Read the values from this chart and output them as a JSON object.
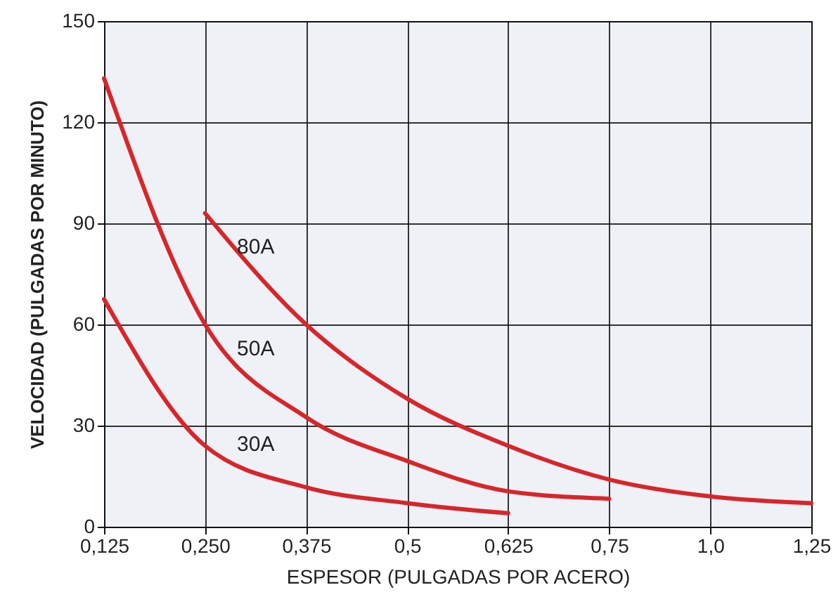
{
  "chart_data": {
    "type": "line",
    "xlabel": "ESPESOR (PULGADAS POR ACERO)",
    "ylabel": "VELOCIDAD (PULGADAS POR MINUTO)",
    "categories": [
      "0,125",
      "0,250",
      "0,375",
      "0,5",
      "0,625",
      "0,75",
      "1,0",
      "1,25"
    ],
    "series": [
      {
        "name": "80A",
        "color": "#d7262b",
        "values": [
          null,
          93,
          60,
          38,
          24,
          14,
          9,
          7
        ]
      },
      {
        "name": "50A",
        "color": "#d7262b",
        "values": [
          133,
          60,
          32.5,
          19.5,
          10.5,
          8.3,
          null,
          null
        ]
      },
      {
        "name": "30A",
        "color": "#d7262b",
        "values": [
          67.5,
          24,
          11.7,
          7,
          4,
          null,
          null,
          null
        ]
      }
    ],
    "ylim": [
      0,
      150
    ],
    "yticks": [
      0,
      30,
      60,
      90,
      120,
      150
    ],
    "grid": true,
    "marker": "none",
    "line_style": "solid"
  }
}
